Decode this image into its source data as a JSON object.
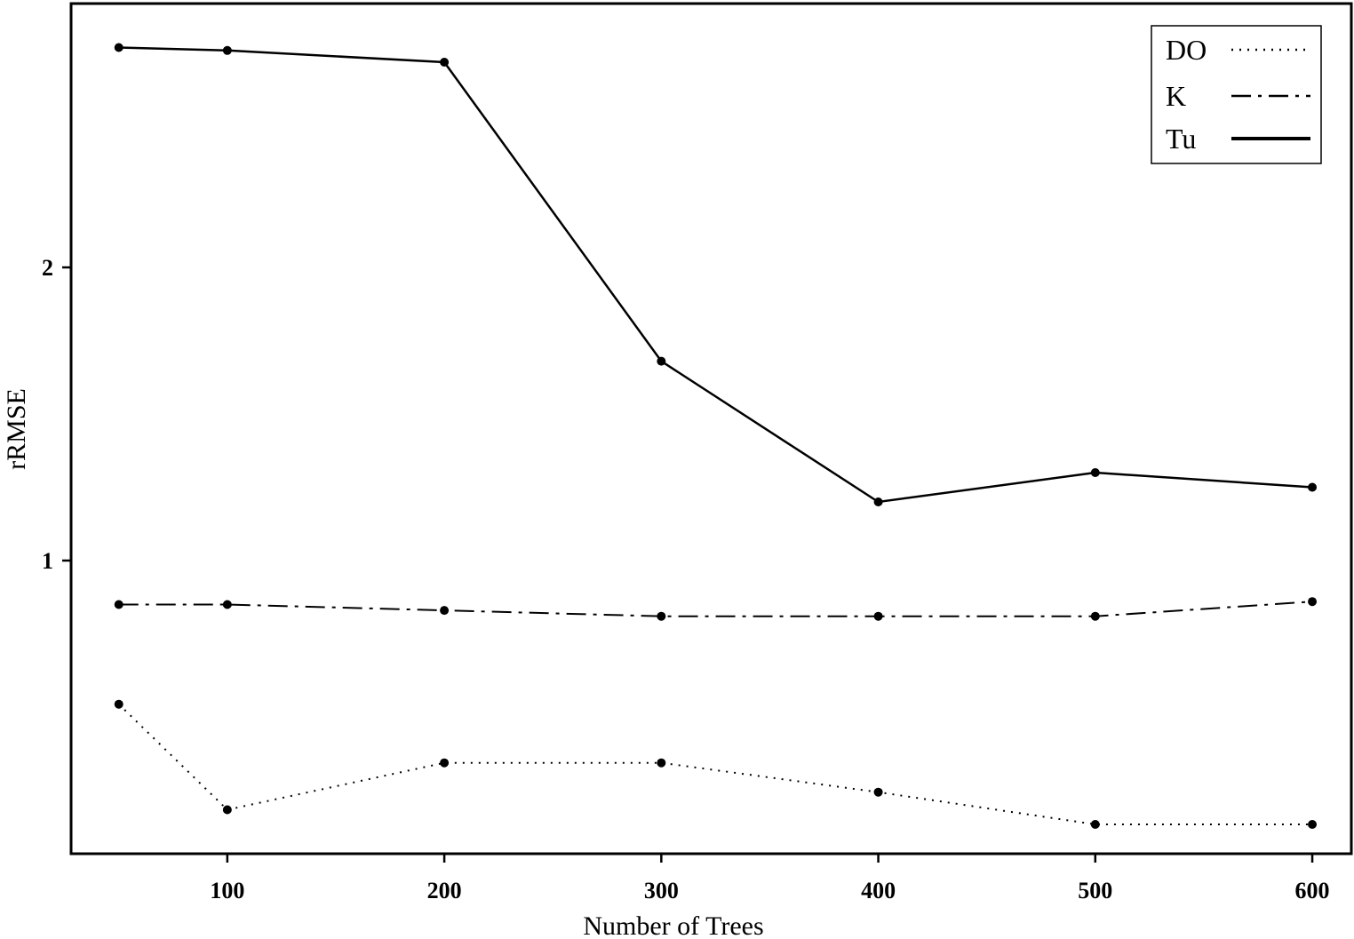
{
  "chart_data": {
    "type": "line",
    "xlabel": "Number of Trees",
    "ylabel": "rRMSE",
    "xlim": [
      28,
      618
    ],
    "ylim": [
      0.0,
      2.9
    ],
    "xticks": [
      100,
      200,
      300,
      400,
      500,
      600
    ],
    "yticks": [
      1,
      2
    ],
    "grid": false,
    "legend_position": "top-right",
    "x": [
      50,
      100,
      200,
      300,
      400,
      500,
      600
    ],
    "series": [
      {
        "name": "DO",
        "style": "dotted",
        "color": "#000000",
        "values": [
          0.51,
          0.15,
          0.31,
          0.31,
          0.21,
          0.1,
          0.1
        ]
      },
      {
        "name": "K",
        "style": "dashdot",
        "color": "#000000",
        "values": [
          0.85,
          0.85,
          0.83,
          0.81,
          0.81,
          0.81,
          0.86
        ]
      },
      {
        "name": "Tu",
        "style": "solid",
        "color": "#000000",
        "values": [
          2.75,
          2.74,
          2.7,
          1.68,
          1.2,
          1.3,
          1.25
        ]
      }
    ]
  }
}
